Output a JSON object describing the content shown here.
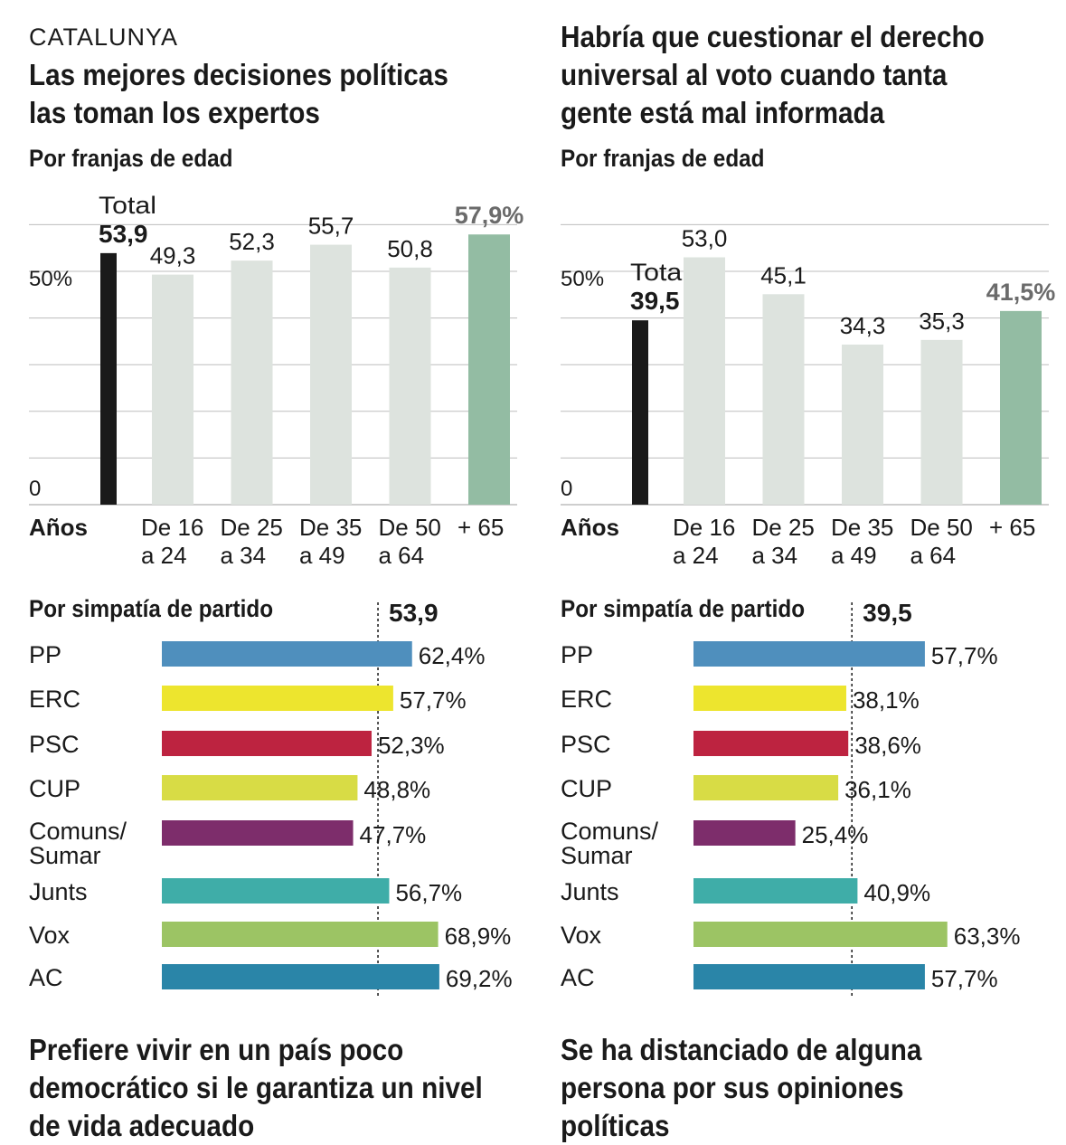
{
  "panels": [
    {
      "kicker": "CATALUNYA",
      "title": "Las mejores decisiones políticas las toman los expertos",
      "footer_title": "Prefiere vivir en un país poco democrático si le garantiza un nivel de vida adecuado",
      "chart_data": [
        {
          "type": "bar",
          "subtitle": "Por franjas de edad",
          "xlabel": "Años",
          "y_tick_labels": [
            "0",
            "50%"
          ],
          "ylim": [
            0,
            60
          ],
          "total_label": "Total",
          "total_value": 53.9,
          "total_text": "53,9",
          "categories": [
            [
              "De 16",
              "a 24"
            ],
            [
              "De 25",
              "a 34"
            ],
            [
              "De 35",
              "a 49"
            ],
            [
              "De 50",
              "a 64"
            ],
            [
              "+ 65"
            ]
          ],
          "values": [
            49.3,
            52.3,
            55.7,
            50.8,
            57.9
          ],
          "value_labels": [
            "49,3",
            "52,3",
            "55,7",
            "50,8",
            "57,9%"
          ]
        },
        {
          "type": "bar",
          "orientation": "horizontal",
          "subtitle": "Por simpatía de partido",
          "reference_value": 53.9,
          "reference_text": "53,9",
          "xlim": [
            0,
            70
          ],
          "categories": [
            "PP",
            "ERC",
            "PSC",
            "CUP",
            [
              "Comuns/",
              "Sumar"
            ],
            "Junts",
            "Vox",
            "AC"
          ],
          "values": [
            62.4,
            57.7,
            52.3,
            48.8,
            47.7,
            56.7,
            68.9,
            69.2
          ],
          "value_labels": [
            "62,4%",
            "57,7%",
            "52,3%",
            "48,8%",
            "47,7%",
            "56,7%",
            "68,9%",
            "69,2%"
          ]
        }
      ]
    },
    {
      "kicker": "",
      "title": "Habría que cuestionar el derecho universal al voto cuando tanta gente está mal informada",
      "footer_title": "Se ha distanciado de alguna persona por sus opiniones políticas",
      "chart_data": [
        {
          "type": "bar",
          "subtitle": "Por franjas de edad",
          "xlabel": "Años",
          "y_tick_labels": [
            "0",
            "50%"
          ],
          "ylim": [
            0,
            60
          ],
          "total_label": "Total",
          "total_value": 39.5,
          "total_text": "39,5",
          "categories": [
            [
              "De 16",
              "a 24"
            ],
            [
              "De 25",
              "a 34"
            ],
            [
              "De 35",
              "a 49"
            ],
            [
              "De 50",
              "a 64"
            ],
            [
              "+ 65"
            ]
          ],
          "values": [
            53.0,
            45.1,
            34.3,
            35.3,
            41.5
          ],
          "value_labels": [
            "53,0",
            "45,1",
            "34,3",
            "35,3",
            "41,5%"
          ]
        },
        {
          "type": "bar",
          "orientation": "horizontal",
          "subtitle": "Por simpatía de partido",
          "reference_value": 39.5,
          "reference_text": "39,5",
          "xlim": [
            0,
            70
          ],
          "categories": [
            "PP",
            "ERC",
            "PSC",
            "CUP",
            [
              "Comuns/",
              "Sumar"
            ],
            "Junts",
            "Vox",
            "AC"
          ],
          "values": [
            57.7,
            38.1,
            38.6,
            36.1,
            25.4,
            40.9,
            63.3,
            57.7
          ],
          "value_labels": [
            "57,7%",
            "38,1%",
            "38,6%",
            "36,1%",
            "25,4%",
            "40,9%",
            "63,3%",
            "57,7%"
          ]
        }
      ]
    }
  ],
  "colors": {
    "total_bar": "#1a1a1a",
    "age_bar": "#dde3de",
    "highlight_bar": "#93bca3",
    "highlight_label": "#6b6b6b",
    "grid": "#bdbdbd",
    "parties": [
      "#4f8fbd",
      "#ede52e",
      "#bd2340",
      "#d8dc45",
      "#7d2d6b",
      "#3fada8",
      "#9cc464",
      "#2a85a8"
    ]
  }
}
